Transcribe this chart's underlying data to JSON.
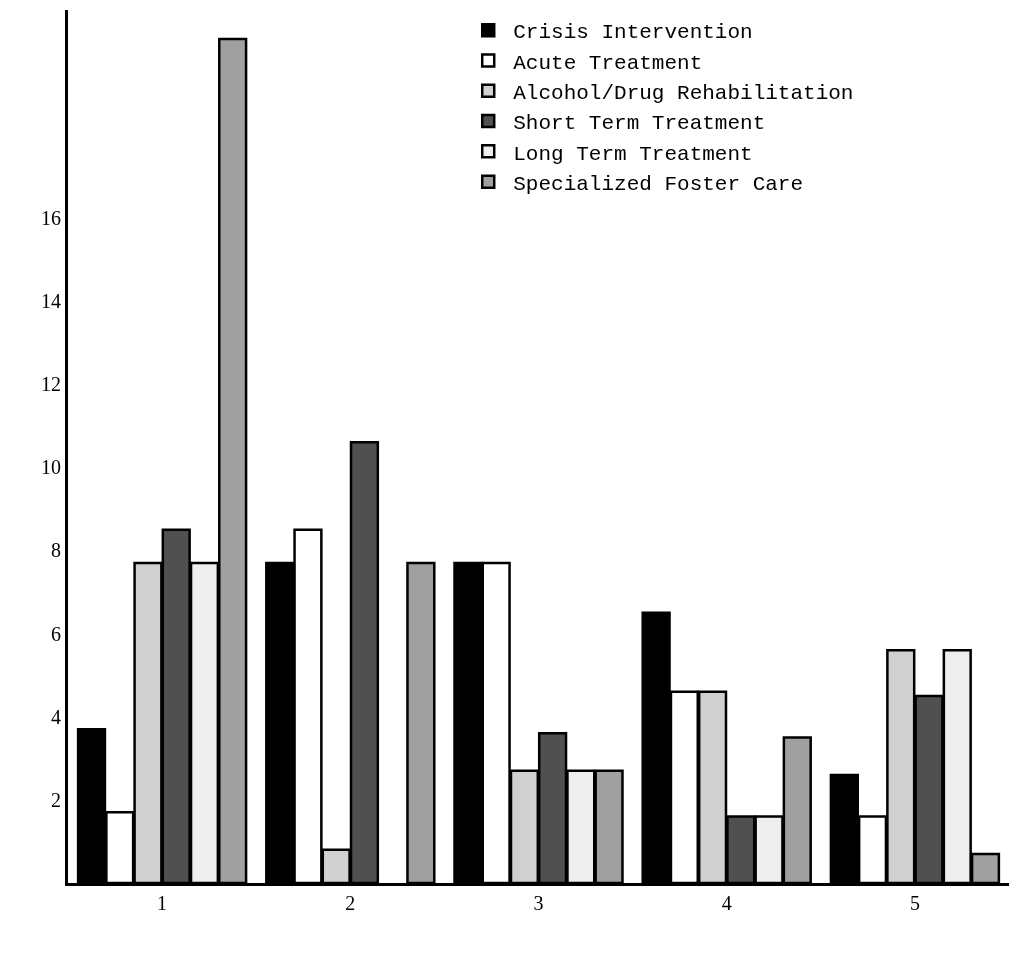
{
  "chart_data": {
    "type": "bar",
    "categories": [
      "1",
      "2",
      "3",
      "4",
      "5"
    ],
    "series": [
      {
        "name": "Crisis Intervention",
        "color": "#000000",
        "values": [
          3.7,
          7.7,
          7.7,
          6.5,
          2.6
        ]
      },
      {
        "name": "Acute Treatment",
        "color": "#ffffff",
        "values": [
          1.7,
          8.5,
          7.7,
          4.6,
          1.6
        ]
      },
      {
        "name": "Alcohol/Drug Rehabilitation",
        "color": "#d0d0d0",
        "values": [
          7.7,
          0.8,
          2.7,
          4.6,
          5.6
        ]
      },
      {
        "name": "Short Term Treatment",
        "color": "#505050",
        "values": [
          8.5,
          10.6,
          3.6,
          1.6,
          4.5
        ]
      },
      {
        "name": "Long Term Treatment",
        "color": "#eeeeee",
        "values": [
          7.7,
          null,
          2.7,
          1.6,
          5.6
        ]
      },
      {
        "name": "Specialized Foster Care",
        "color": "#a0a0a0",
        "values": [
          20.3,
          7.7,
          2.7,
          3.5,
          0.7
        ]
      }
    ],
    "ylim": [
      0,
      21
    ],
    "yticks": [
      2,
      4,
      6,
      8,
      10,
      12,
      14,
      16
    ],
    "grid": false,
    "legend": "top right"
  }
}
